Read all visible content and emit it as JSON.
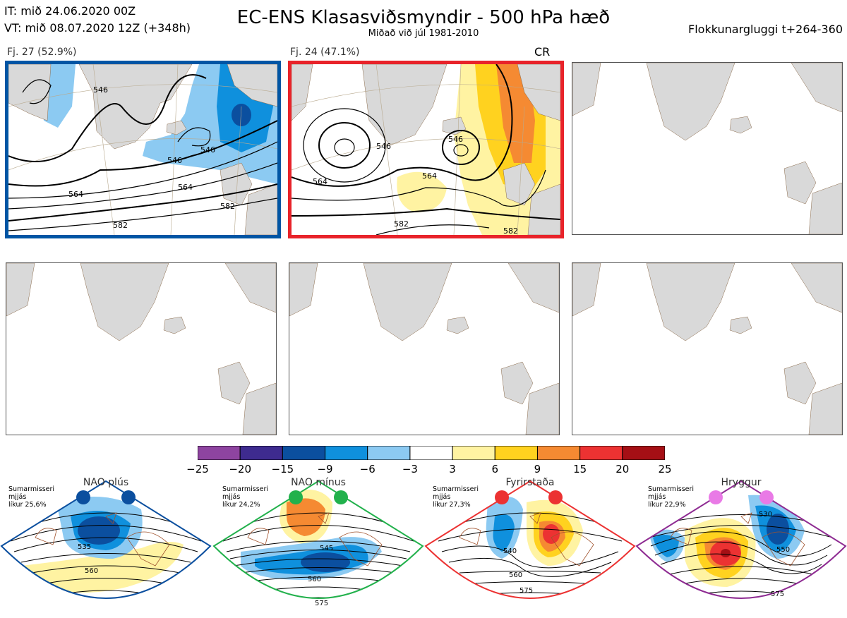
{
  "header": {
    "it": "IT: mið 24.06.2020 00Z",
    "vt": "VT: mið 08.07.2020 12Z  (+348h)",
    "title": "EC-ENS Klasasviðsmyndir - 500 hPa hæð",
    "subtitle": "Miðað við júl 1981-2010",
    "window": "Flokkunargluggi t+264-360"
  },
  "clusters": [
    {
      "label": "Fj. 27 (52.9%)",
      "contours": [
        "546",
        "546",
        "546",
        "564",
        "564",
        "582",
        "582"
      ]
    },
    {
      "label": "Fj. 24 (47.1%)",
      "contours": [
        "546",
        "546",
        "564",
        "564",
        "582",
        "582"
      ],
      "tag": "CR"
    }
  ],
  "colorbar": {
    "ticks": [
      "-25",
      "-20",
      "-15",
      "-9",
      "-6",
      "-3",
      "3",
      "6",
      "9",
      "15",
      "20",
      "25"
    ],
    "colors": [
      "#8e44a0",
      "#3e2b8f",
      "#0b4f9f",
      "#0f90dd",
      "#8ccaf2",
      "#ffffff",
      "#fff3a2",
      "#ffd21f",
      "#f58a32",
      "#ec3232",
      "#a50f15"
    ]
  },
  "regimes": [
    {
      "name": "NAO plús",
      "note": [
        "Sumarmisseri",
        "mjjás",
        "líkur 25,6%"
      ],
      "dot_color": "#0b4f9f",
      "frame_color": "#0b4f9f",
      "contours": [
        "535",
        "560"
      ]
    },
    {
      "name": "NAO mínus",
      "note": [
        "Sumarmisseri",
        "mjjás",
        "líkur 24,2%"
      ],
      "dot_color": "#22b14c",
      "frame_color": "#22b14c",
      "contours": [
        "545",
        "560",
        "575"
      ]
    },
    {
      "name": "Fyrirstaða",
      "note": [
        "Sumarmisseri",
        "mjjás",
        "líkur 27,3%"
      ],
      "dot_color": "#ec3232",
      "frame_color": "#ec3232",
      "contours": [
        "540",
        "560",
        "575"
      ]
    },
    {
      "name": "Hryggur",
      "note": [
        "Sumarmisseri",
        "mjjás",
        "líkur 22,9%"
      ],
      "dot_color": "#e97ae6",
      "frame_color": "#8e2b92",
      "contours": [
        "530",
        "550",
        "575"
      ]
    }
  ]
}
